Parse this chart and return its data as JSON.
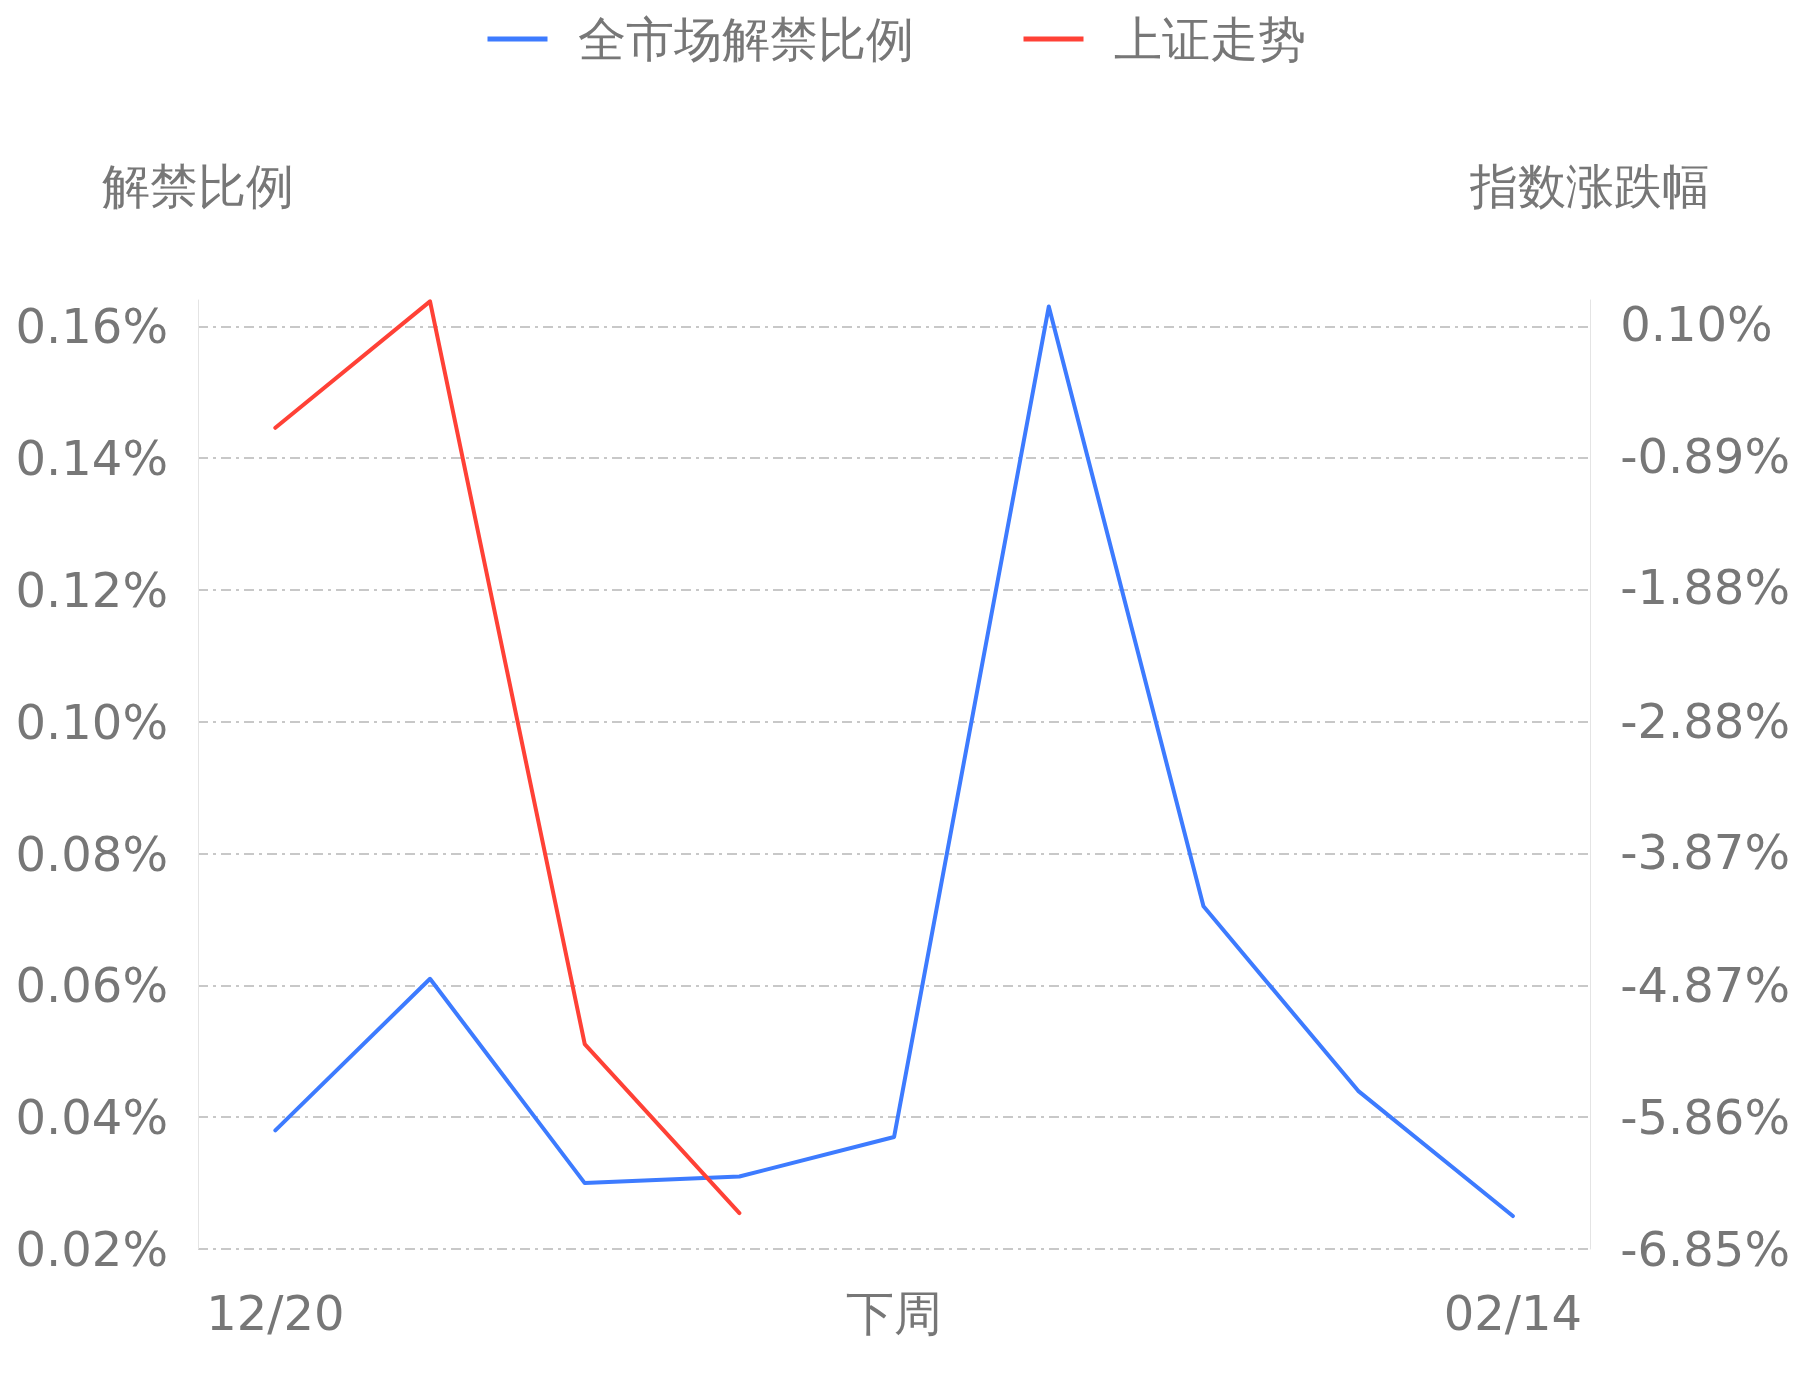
{
  "chart_data": {
    "type": "line",
    "categories": [
      "12/20",
      null,
      null,
      null,
      "下周",
      null,
      null,
      null,
      "02/14"
    ],
    "series": [
      {
        "name": "全市场解禁比例",
        "color": "#3d7bff",
        "values": [
          0.038,
          0.061,
          0.03,
          0.031,
          0.037,
          0.163,
          0.072,
          0.044,
          0.025
        ]
      },
      {
        "name": "上证走势",
        "color": "#ff4136",
        "axis": "y2",
        "values": [
          -0.68,
          0.27,
          -5.31,
          -6.58,
          null,
          null,
          null,
          null,
          null
        ]
      }
    ],
    "ylabel": "解禁比例",
    "y2label": "指数涨跌幅",
    "ylim": [
      0.02,
      0.164
    ],
    "yticks": [
      {
        "value": 0.02,
        "label": "0.02%"
      },
      {
        "value": 0.04,
        "label": "0.04%"
      },
      {
        "value": 0.06,
        "label": "0.06%"
      },
      {
        "value": 0.08,
        "label": "0.08%"
      },
      {
        "value": 0.1,
        "label": "0.10%"
      },
      {
        "value": 0.12,
        "label": "0.12%"
      },
      {
        "value": 0.14,
        "label": "0.14%"
      },
      {
        "value": 0.16,
        "label": "0.16%"
      }
    ],
    "y2lim": [
      -6.85,
      0.28
    ],
    "y2ticks": [
      {
        "value": -6.85,
        "label": "-6.85%"
      },
      {
        "value": -5.86,
        "label": "-5.86%"
      },
      {
        "value": -4.87,
        "label": "-4.87%"
      },
      {
        "value": -3.87,
        "label": "-3.87%"
      },
      {
        "value": -2.88,
        "label": "-2.88%"
      },
      {
        "value": -1.88,
        "label": "-1.88%"
      },
      {
        "value": -0.89,
        "label": "-0.89%"
      },
      {
        "value": 0.1,
        "label": "0.10%"
      }
    ],
    "grid": "y",
    "legend": "top",
    "marker": "none",
    "line_style": "solid"
  }
}
